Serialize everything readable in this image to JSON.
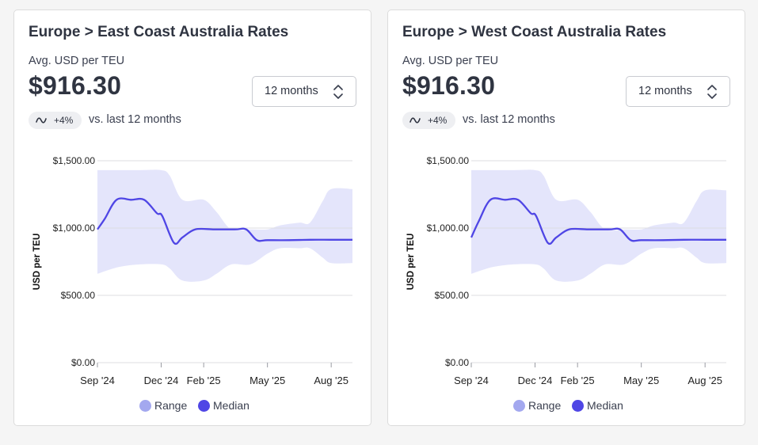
{
  "colors": {
    "range": "#e4e5fb",
    "range_dot": "#a3a8ef",
    "median": "#4f46e5",
    "grid": "#dcdde1",
    "axis_text": "#222222"
  },
  "icons": {
    "badge": "wave-icon",
    "select": "chevron-up-down-icon"
  },
  "cards": [
    {
      "title": "Europe > East Coast Australia Rates",
      "subtitle": "Avg. USD per TEU",
      "price": "$916.30",
      "period_select": "12 months",
      "change_badge": "+4%",
      "change_text": "vs. last 12 months",
      "legend": {
        "range": "Range",
        "median": "Median"
      }
    },
    {
      "title": "Europe > West Coast Australia Rates",
      "subtitle": "Avg. USD per TEU",
      "price": "$916.30",
      "period_select": "12 months",
      "change_badge": "+4%",
      "change_text": "vs. last 12 months",
      "legend": {
        "range": "Range",
        "median": "Median"
      }
    }
  ],
  "chart_data": [
    {
      "type": "area",
      "ylabel": "USD per TEU",
      "ylim": [
        0,
        1500
      ],
      "y_ticks": [
        "$0.00",
        "$500.00",
        "$1,000.00",
        "$1,500.00"
      ],
      "y_tick_values": [
        0,
        500,
        1000,
        1500
      ],
      "x_ticks": [
        "Sep '24",
        "Dec '24",
        "Feb '25",
        "May '25",
        "Aug '25"
      ],
      "x_tick_months": [
        0,
        3,
        5,
        8,
        11
      ],
      "x_range_months": [
        0,
        12
      ],
      "grid": true,
      "legend_position": "bottom",
      "series": [
        {
          "name": "Median",
          "x": [
            0,
            0.35,
            0.9,
            1.6,
            2.2,
            2.8,
            3.05,
            3.6,
            4.0,
            4.6,
            5.5,
            6.5,
            7.0,
            7.5,
            8.0,
            9.0,
            10.0,
            11.0,
            12.0
          ],
          "values": [
            990,
            1070,
            1210,
            1210,
            1210,
            1110,
            1090,
            890,
            930,
            990,
            990,
            990,
            990,
            910,
            910,
            910,
            913,
            913,
            913
          ]
        },
        {
          "name": "Range",
          "x": [
            0,
            1.0,
            2.0,
            3.0,
            3.4,
            4.0,
            5.0,
            5.6,
            6.3,
            7.2,
            8.0,
            8.6,
            9.5,
            10.0,
            10.6,
            11.0,
            12.0
          ],
          "upper": [
            1430,
            1430,
            1430,
            1430,
            1390,
            1210,
            1210,
            1120,
            990,
            990,
            990,
            1020,
            1040,
            1040,
            1200,
            1290,
            1290
          ],
          "lower": [
            660,
            710,
            730,
            730,
            700,
            610,
            610,
            660,
            730,
            730,
            810,
            850,
            850,
            850,
            780,
            740,
            740
          ]
        }
      ]
    },
    {
      "type": "area",
      "ylabel": "USD per TEU",
      "ylim": [
        0,
        1500
      ],
      "y_ticks": [
        "$0.00",
        "$500.00",
        "$1,000.00",
        "$1,500.00"
      ],
      "y_tick_values": [
        0,
        500,
        1000,
        1500
      ],
      "x_ticks": [
        "Sep '24",
        "Dec '24",
        "Feb '25",
        "May '25",
        "Aug '25"
      ],
      "x_tick_months": [
        0,
        3,
        5,
        8,
        11
      ],
      "x_range_months": [
        0,
        12
      ],
      "grid": true,
      "legend_position": "bottom",
      "series": [
        {
          "name": "Median",
          "x": [
            0,
            0.35,
            0.9,
            1.6,
            2.2,
            2.8,
            3.05,
            3.6,
            4.0,
            4.6,
            5.5,
            6.5,
            7.0,
            7.5,
            8.0,
            9.0,
            10.0,
            11.0,
            12.0
          ],
          "values": [
            930,
            1050,
            1210,
            1210,
            1210,
            1110,
            1090,
            890,
            930,
            990,
            990,
            990,
            990,
            910,
            910,
            910,
            913,
            913,
            913
          ]
        },
        {
          "name": "Range",
          "x": [
            0,
            1.0,
            2.0,
            3.0,
            3.4,
            4.0,
            5.0,
            5.6,
            6.3,
            7.2,
            8.0,
            8.6,
            9.5,
            10.0,
            10.6,
            11.0,
            12.0
          ],
          "upper": [
            1430,
            1430,
            1430,
            1430,
            1390,
            1210,
            1210,
            1120,
            990,
            990,
            990,
            1020,
            1040,
            1040,
            1200,
            1280,
            1280
          ],
          "lower": [
            660,
            710,
            730,
            730,
            700,
            610,
            610,
            660,
            730,
            730,
            810,
            850,
            850,
            850,
            780,
            740,
            740
          ]
        }
      ]
    }
  ]
}
